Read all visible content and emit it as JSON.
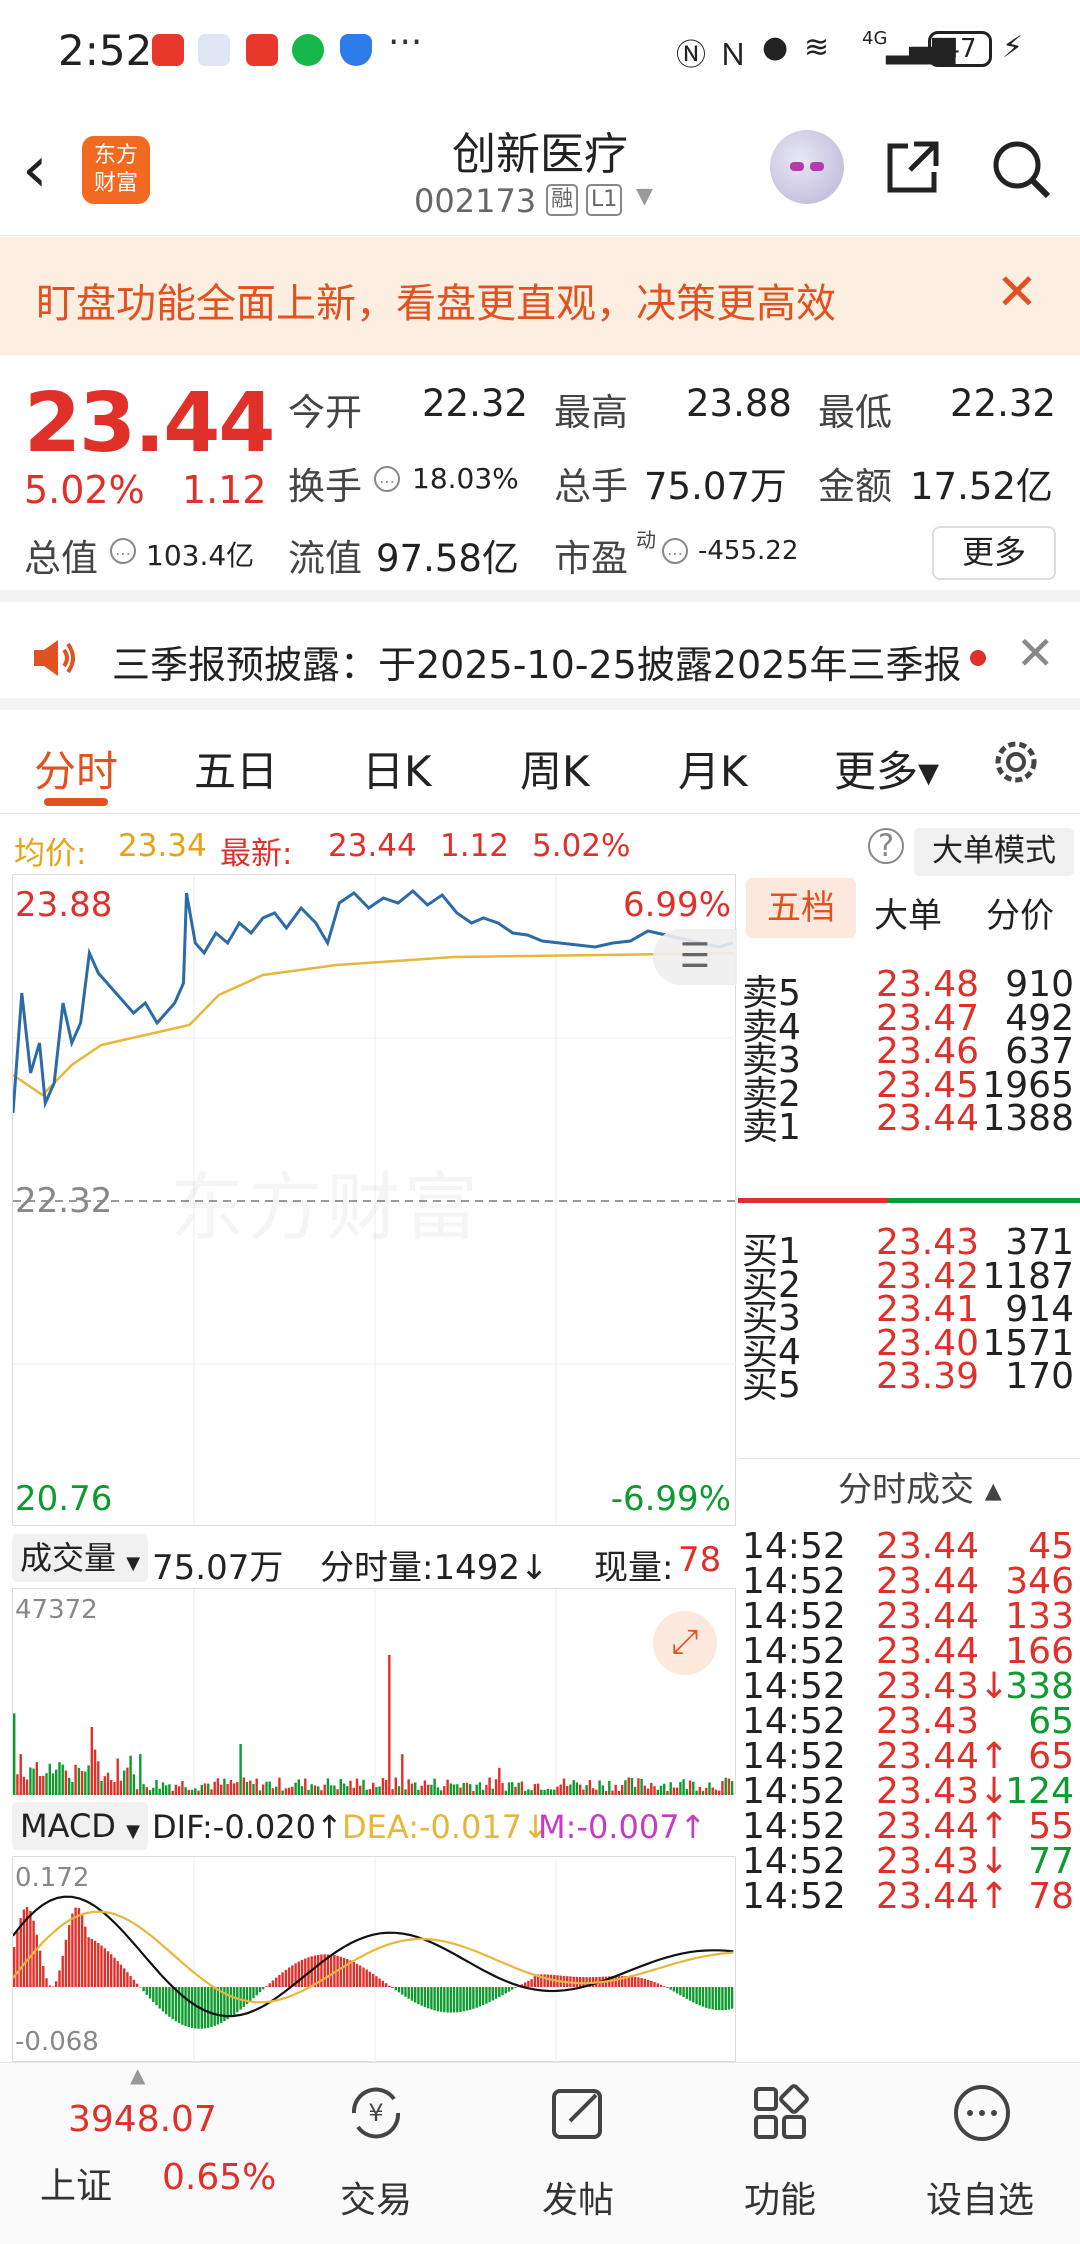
{
  "status_bar": {
    "time": "2:52",
    "dots": "···",
    "battery": "47",
    "network": "4G"
  },
  "header": {
    "logo_text_1": "东方",
    "logo_text_2": "财富",
    "stock_name": "创新医疗",
    "stock_code": "002173",
    "tag_margin": "融",
    "tag_level": "L1"
  },
  "banner": {
    "text": "盯盘功能全面上新，看盘更直观，决策更高效",
    "close": "✕"
  },
  "quote": {
    "price": "23.44",
    "change_pct": "5.02%",
    "change": "1.12",
    "open_label": "今开",
    "open": "22.32",
    "high_label": "最高",
    "high": "23.88",
    "low_label": "最低",
    "low": "22.32",
    "turnover_label": "换手",
    "turnover": "18.03%",
    "volume_label": "总手",
    "volume": "75.07万",
    "amount_label": "金额",
    "amount": "17.52亿",
    "mktcap_label": "总值",
    "mktcap": "103.4亿",
    "float_label": "流值",
    "float": "97.58亿",
    "pe_label": "市盈",
    "pe_sup": "动",
    "pe": "-455.22",
    "more": "更多"
  },
  "notice": {
    "text": "三季报预披露：于2025-10-25披露2025年三季报",
    "close": "✕"
  },
  "tabs": [
    "分时",
    "五日",
    "日K",
    "周K",
    "月K",
    "更多▾"
  ],
  "avg_row": {
    "avg_label": "均价:",
    "avg": "23.34",
    "latest_label": "最新:",
    "latest": "23.44",
    "chg": "1.12",
    "pct": "5.02%",
    "help": "?",
    "big_mode": "大单模式"
  },
  "main_chart": {
    "top_price": "23.88",
    "top_pct": "6.99%",
    "mid_price": "22.32",
    "bottom_price": "20.76",
    "bottom_pct": "-6.99%",
    "watermark": "东方财富"
  },
  "volume_bar": {
    "label": "成交量",
    "total": "75.07万",
    "tick_vol": "分时量:1492↓",
    "cur_label": "现量:",
    "cur": "78",
    "max": "47372"
  },
  "macd_bar": {
    "label": "MACD",
    "dif": "DIF:-0.020↑",
    "dea": "DEA:-0.017↓",
    "m": "M:-0.007↑",
    "top": "0.172",
    "bottom": "-0.068"
  },
  "book": {
    "tabs": [
      "五档",
      "大单",
      "分价"
    ],
    "sells": [
      {
        "label": "卖5",
        "price": "23.48",
        "vol": "910"
      },
      {
        "label": "卖4",
        "price": "23.47",
        "vol": "492"
      },
      {
        "label": "卖3",
        "price": "23.46",
        "vol": "637"
      },
      {
        "label": "卖2",
        "price": "23.45",
        "vol": "1965"
      },
      {
        "label": "卖1",
        "price": "23.44",
        "vol": "1388"
      }
    ],
    "buys": [
      {
        "label": "买1",
        "price": "23.43",
        "vol": "371"
      },
      {
        "label": "买2",
        "price": "23.42",
        "vol": "1187"
      },
      {
        "label": "买3",
        "price": "23.41",
        "vol": "914"
      },
      {
        "label": "买4",
        "price": "23.40",
        "vol": "1571"
      },
      {
        "label": "买5",
        "price": "23.39",
        "vol": "170"
      }
    ],
    "trades_title": "分时成交 ▴",
    "trades": [
      {
        "time": "14:52",
        "price": "23.44",
        "vol": "45",
        "color": "red"
      },
      {
        "time": "14:52",
        "price": "23.44",
        "vol": "346",
        "color": "red"
      },
      {
        "time": "14:52",
        "price": "23.44",
        "vol": "133",
        "color": "red"
      },
      {
        "time": "14:52",
        "price": "23.44",
        "vol": "166",
        "color": "red"
      },
      {
        "time": "14:52",
        "price": "23.43↓",
        "vol": "338",
        "color": "green"
      },
      {
        "time": "14:52",
        "price": "23.43",
        "vol": "65",
        "color": "green"
      },
      {
        "time": "14:52",
        "price": "23.44↑",
        "vol": "65",
        "color": "red"
      },
      {
        "time": "14:52",
        "price": "23.43↓",
        "vol": "124",
        "color": "green"
      },
      {
        "time": "14:52",
        "price": "23.44↑",
        "vol": "55",
        "color": "red"
      },
      {
        "time": "14:52",
        "price": "23.43↓",
        "vol": "77",
        "color": "green"
      },
      {
        "time": "14:52",
        "price": "23.44↑",
        "vol": "78",
        "color": "red"
      }
    ]
  },
  "bottom_nav": {
    "index_value": "3948.07",
    "index_name": "上证",
    "index_pct": "0.65%",
    "trade": "交易",
    "post": "发帖",
    "func": "功能",
    "watch": "设自选"
  },
  "colors": {
    "up": "#e0302a",
    "down": "#0d9b2f",
    "accent": "#e05220",
    "price_line": "#2c6aa8",
    "avg_line": "#e8b63a"
  }
}
